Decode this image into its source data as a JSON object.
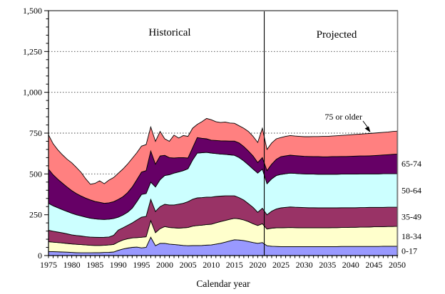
{
  "annotations": {
    "historical": "Historical",
    "projected": "Projected",
    "callout": "75 or older"
  },
  "chart_data": {
    "type": "area",
    "stacked": true,
    "title": "",
    "xlabel": "Calendar year",
    "ylabel": "",
    "x_start": 1975,
    "x_end": 2050,
    "x_step": 1,
    "ylim": [
      0,
      1500
    ],
    "y_ticks": [
      0,
      250,
      500,
      750,
      1000,
      1250,
      1500
    ],
    "y_tick_labels": [
      "0",
      "250",
      "500",
      "750",
      "1,000",
      "1,250",
      "1,500"
    ],
    "y_minor_tick_every": 50,
    "x_label_every": 5,
    "grid": "horizontal-dotted",
    "legend_position": "right-edge-labels",
    "divider_year": 2021.4,
    "axis_color": "#000000",
    "frame_color": "#808080",
    "gridline_color": "#404040",
    "series": [
      {
        "name": "0-17",
        "color": "#9999FF",
        "values": [
          25,
          24,
          23,
          22,
          21,
          19,
          18,
          17,
          17,
          17,
          18,
          18,
          19,
          20,
          22,
          32,
          40,
          46,
          50,
          52,
          47,
          50,
          112,
          60,
          75,
          75,
          70,
          68,
          65,
          62,
          60,
          61,
          61,
          62,
          64,
          65,
          70,
          75,
          82,
          90,
          97,
          95,
          92,
          86,
          80,
          75,
          80,
          60,
          57,
          56,
          55,
          55,
          55,
          55,
          55,
          55,
          55,
          55,
          55,
          55,
          55,
          55,
          55,
          56,
          56,
          56,
          56,
          56,
          56,
          56,
          56,
          56,
          57,
          57,
          57,
          57
        ]
      },
      {
        "name": "18-34",
        "color": "#FFFFCC",
        "values": [
          60,
          58,
          57,
          55,
          53,
          52,
          51,
          50,
          48,
          46,
          44,
          44,
          44,
          45,
          46,
          51,
          55,
          57,
          58,
          58,
          65,
          65,
          102,
          80,
          90,
          103,
          102,
          102,
          103,
          108,
          112,
          119,
          123,
          124,
          126,
          127,
          130,
          133,
          133,
          132,
          131,
          130,
          126,
          122,
          115,
          109,
          115,
          102,
          111,
          114,
          115,
          116,
          117,
          116,
          115,
          115,
          115,
          115,
          115,
          115,
          115,
          116,
          116,
          116,
          116,
          117,
          117,
          118,
          118,
          119,
          120,
          120,
          120,
          121,
          121,
          122
        ]
      },
      {
        "name": "35-49",
        "color": "#993366",
        "values": [
          70,
          67,
          64,
          62,
          59,
          56,
          54,
          53,
          51,
          50,
          50,
          49,
          49,
          49,
          56,
          73,
          75,
          82,
          92,
          108,
          123,
          125,
          130,
          130,
          135,
          136,
          138,
          140,
          147,
          150,
          158,
          165,
          169,
          169,
          168,
          166,
          162,
          156,
          151,
          144,
          138,
          130,
          122,
          110,
          100,
          81,
          95,
          88,
          104,
          115,
          122,
          124,
          126,
          125,
          125,
          124,
          123,
          123,
          122,
          122,
          122,
          121,
          121,
          121,
          121,
          120,
          120,
          120,
          120,
          120,
          119,
          119,
          118,
          118,
          118,
          117
        ]
      },
      {
        "name": "50-64",
        "color": "#CCFFFF",
        "values": [
          165,
          156,
          149,
          142,
          137,
          132,
          127,
          123,
          119,
          116,
          113,
          111,
          109,
          109,
          103,
          79,
          78,
          80,
          90,
          112,
          139,
          140,
          106,
          150,
          165,
          176,
          185,
          195,
          197,
          200,
          202,
          240,
          275,
          275,
          274,
          270,
          263,
          258,
          254,
          251,
          248,
          245,
          240,
          237,
          235,
          240,
          240,
          190,
          198,
          205,
          205,
          206,
          207,
          207,
          206,
          206,
          206,
          206,
          206,
          206,
          206,
          206,
          206,
          206,
          206,
          206,
          206,
          206,
          206,
          205,
          205,
          205,
          206,
          205,
          205,
          205
        ]
      },
      {
        "name": "65-74",
        "color": "#660066",
        "values": [
          210,
          190,
          175,
          162,
          150,
          139,
          130,
          122,
          117,
          112,
          107,
          104,
          99,
          100,
          103,
          109,
          112,
          120,
          130,
          135,
          137,
          140,
          190,
          140,
          145,
          124,
          105,
          93,
          88,
          80,
          66,
          75,
          95,
          88,
          83,
          79,
          80,
          81,
          82,
          84,
          87,
          90,
          88,
          85,
          80,
          65,
          70,
          80,
          90,
          100,
          109,
          110,
          110,
          109,
          109,
          108,
          108,
          107,
          108,
          107,
          107,
          108,
          108,
          108,
          108,
          109,
          110,
          110,
          110,
          111,
          112,
          114,
          115,
          117,
          119,
          121
        ]
      },
      {
        "name": "75 or older",
        "color": "#FF8080",
        "values": [
          210,
          190,
          180,
          174,
          170,
          170,
          160,
          145,
          118,
          96,
          110,
          132,
          120,
          139,
          148,
          160,
          170,
          175,
          175,
          165,
          159,
          160,
          148,
          140,
          150,
          101,
          100,
          140,
          120,
          135,
          132,
          120,
          80,
          102,
          125,
          125,
          115,
          112,
          116,
          111,
          109,
          105,
          112,
          120,
          120,
          123,
          180,
          130,
          130,
          125,
          117,
          119,
          120,
          120,
          120,
          120,
          121,
          123,
          123,
          125,
          125,
          126,
          128,
          129,
          131,
          132,
          133,
          134,
          136,
          137,
          138,
          138,
          139,
          139,
          140,
          140
        ]
      }
    ]
  }
}
